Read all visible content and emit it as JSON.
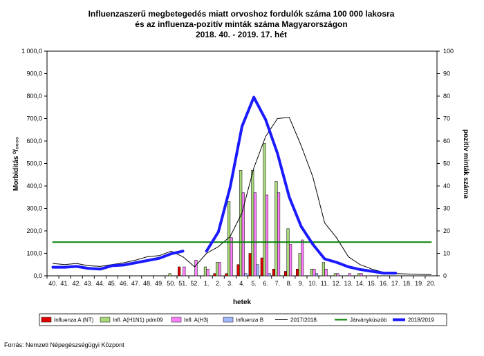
{
  "chart_data": {
    "type": "bar",
    "title_lines": [
      "Influenzaszerű megbetegedés miatt orvoshoz fordulók száma 100 000 lakosra",
      "és az influenza-pozitív minták száma Magyarországon",
      "2018. 40. - 2019. 17. hét"
    ],
    "xlabel": "hetek",
    "ylabel_left": "Morbiditás ⁰/₀₀₀₀",
    "ylabel_right": "pozitív minták száma",
    "ylim_left": [
      0,
      1000
    ],
    "ylim_right": [
      0,
      100
    ],
    "yticks_left": [
      "0,0",
      "100,0",
      "200,0",
      "300,0",
      "400,0",
      "500,0",
      "600,0",
      "700,0",
      "800,0",
      "900,0",
      "1 000,0"
    ],
    "yticks_right": [
      "0",
      "10",
      "20",
      "30",
      "40",
      "50",
      "60",
      "70",
      "80",
      "90",
      "100"
    ],
    "categories": [
      "40.",
      "41.",
      "42.",
      "43.",
      "44.",
      "45.",
      "46.",
      "47.",
      "48.",
      "49.",
      "50.",
      "51.",
      "52.",
      "1.",
      "2.",
      "3.",
      "4.",
      "5.",
      "6.",
      "7.",
      "8.",
      "9.",
      "10.",
      "11.",
      "12.",
      "13.",
      "14.",
      "15.",
      "16.",
      "17.",
      "18.",
      "19.",
      "20."
    ],
    "bar_series": [
      {
        "name": "Influenza A (NT)",
        "color": "#e00000",
        "values": [
          0,
          0,
          0,
          0,
          0,
          0,
          0,
          0,
          0,
          0,
          0,
          4,
          0,
          0,
          1,
          1,
          5,
          10,
          8,
          3,
          2,
          3,
          0,
          0,
          0,
          0,
          0,
          0,
          0,
          0,
          0,
          0,
          0
        ]
      },
      {
        "name": "Infl. A(H1N1) pdm09",
        "color": "#a8d878",
        "values": [
          0,
          0,
          0,
          0,
          0,
          0,
          0,
          0,
          0,
          0,
          1,
          0,
          0,
          4,
          6,
          33,
          47,
          47,
          59,
          42,
          21,
          10,
          3,
          6,
          1,
          0,
          1,
          0,
          0,
          0,
          0,
          0,
          0
        ]
      },
      {
        "name": "Infl. A(H3)",
        "color": "#ff80ff",
        "values": [
          0,
          0,
          0,
          0,
          0,
          0,
          0,
          0,
          0,
          0,
          0,
          4,
          7,
          3,
          6,
          17,
          37,
          37,
          36,
          37,
          14,
          16,
          3,
          3,
          1,
          1,
          1,
          0,
          0,
          0,
          0,
          0,
          0
        ]
      },
      {
        "name": "Influenza B",
        "color": "#a0b8ff",
        "values": [
          0,
          0,
          0,
          0,
          0,
          0,
          0,
          0,
          0,
          0,
          0,
          0,
          0,
          0,
          0,
          0,
          1,
          5,
          1,
          0,
          0,
          0,
          1,
          0,
          0,
          0,
          0,
          0,
          0,
          0,
          0,
          0,
          0
        ]
      }
    ],
    "line_series": [
      {
        "name": "2017/2018.",
        "color": "#000000",
        "width": 1,
        "values": [
          55,
          50,
          55,
          45,
          42,
          50,
          58,
          70,
          85,
          90,
          110,
          85,
          40,
          100,
          130,
          175,
          280,
          480,
          620,
          700,
          705,
          580,
          440,
          235,
          170,
          85,
          50,
          30,
          15,
          10,
          8,
          7,
          5
        ]
      },
      {
        "name": "Járványküszöb",
        "color": "#008000",
        "width": 2,
        "values": [
          150,
          150,
          150,
          150,
          150,
          150,
          150,
          150,
          150,
          150,
          150,
          150,
          150,
          150,
          150,
          150,
          150,
          150,
          150,
          150,
          150,
          150,
          150,
          150,
          150,
          150,
          150,
          150,
          150,
          150,
          150,
          150,
          150
        ]
      },
      {
        "name": "2018/2019",
        "color": "#1a1aff",
        "width": 4,
        "segments": [
          {
            "start": 0,
            "values": [
              38,
              38,
              42,
              33,
              30,
              45,
              48,
              58,
              68,
              78,
              98,
              110
            ]
          },
          {
            "start": 13,
            "values": [
              110,
              195,
              395,
              665,
              795,
              695,
              545,
              350,
              220,
              140,
              75,
              60,
              40,
              28,
              20,
              12,
              12
            ]
          }
        ]
      }
    ],
    "legend_position": "bottom",
    "grid": false
  },
  "source_text": "Forrás: Nemzeti Népegészségügyi Központ"
}
